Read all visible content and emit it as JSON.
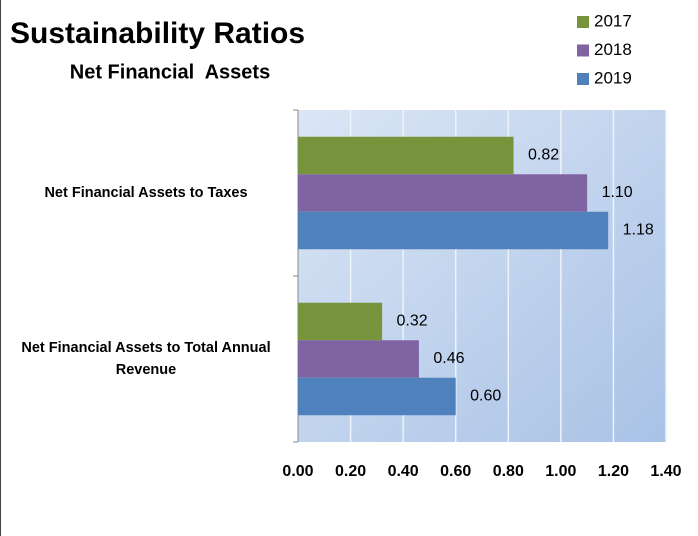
{
  "chart_data": {
    "type": "barh",
    "title": "Sustainability Ratios",
    "subtitle": "Net Financial  Assets",
    "categories": [
      "Net Financial Assets to Taxes",
      "Net Financial Assets to Total Annual Revenue"
    ],
    "series": [
      {
        "name": "2017",
        "color": "#77933c",
        "values": [
          0.82,
          0.32
        ],
        "value_labels": [
          "0.82",
          "0.32"
        ]
      },
      {
        "name": "2018",
        "color": "#8064a2",
        "values": [
          1.1,
          0.46
        ],
        "value_labels": [
          "1.10",
          "0.46"
        ]
      },
      {
        "name": "2019",
        "color": "#4f81bd",
        "values": [
          1.18,
          0.6
        ],
        "value_labels": [
          "1.18",
          "0.60"
        ]
      }
    ],
    "xlim": [
      0,
      1.4
    ],
    "xticks": [
      {
        "value": 0,
        "label": "0.00"
      },
      {
        "value": 0.2,
        "label": "0.20"
      },
      {
        "value": 0.4,
        "label": "0.40"
      },
      {
        "value": 0.6,
        "label": "0.60"
      },
      {
        "value": 0.8,
        "label": "0.80"
      },
      {
        "value": 1,
        "label": "1.00"
      },
      {
        "value": 1.2,
        "label": "1.20"
      },
      {
        "value": 1.4,
        "label": "1.40"
      }
    ],
    "grid": true,
    "legend": "top-right"
  }
}
